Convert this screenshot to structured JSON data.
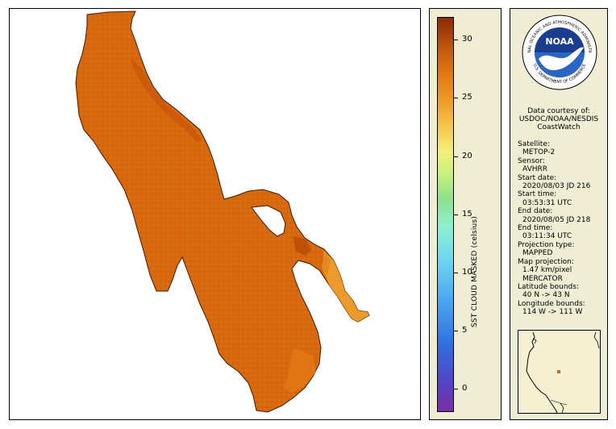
{
  "colorbar": {
    "title": "SST CLOUD MASKED (celsius)",
    "ticks": [
      "30",
      "25",
      "20",
      "15",
      "10",
      "5",
      "0"
    ],
    "range": [
      -1,
      32
    ],
    "colors": [
      "#7b2fa3",
      "#2f6fe0",
      "#6fd8f0",
      "#8ee08c",
      "#f2f078",
      "#f0a02a",
      "#c45a0a",
      "#8a2c05"
    ]
  },
  "logo": {
    "ring_text": "NATIONAL OCEANIC AND ATMOSPHERIC ADMINISTRATION",
    "bottom_text": "U.S. DEPARTMENT OF COMMERCE",
    "center_text": "NOAA"
  },
  "courtesy": {
    "line1": "Data courtesy of:",
    "line2": "USDOC/NOAA/NESDIS",
    "line3": "CoastWatch"
  },
  "meta": {
    "satellite_label": "Satellite:",
    "satellite": "METOP-2",
    "sensor_label": "Sensor:",
    "sensor": "AVHRR",
    "start_date_label": "Start date:",
    "start_date": "2020/08/03 JD 216",
    "start_time_label": "Start time:",
    "start_time": "03:53:31 UTC",
    "end_date_label": "End date:",
    "end_date": "2020/08/05 JD 218",
    "end_time_label": "End time:",
    "end_time": "03:11:34 UTC",
    "projection_type_label": "Projection type:",
    "projection_type": "MAPPED",
    "map_projection_label": "Map projection:",
    "resolution": "1.47 km/pixel",
    "map_projection": "MERCATOR",
    "lat_label": "Latitude bounds:",
    "lat_bounds": "40 N -> 43 N",
    "lon_label": "Longitude bounds:",
    "lon_bounds": "114 W -> 111 W"
  },
  "map_colors": {
    "lake_main": "#d8680e",
    "lake_warm": "#c65508",
    "lake_shallow": "#f0a030",
    "outline": "#3a1a00",
    "locator_marker": "#d8681e"
  }
}
